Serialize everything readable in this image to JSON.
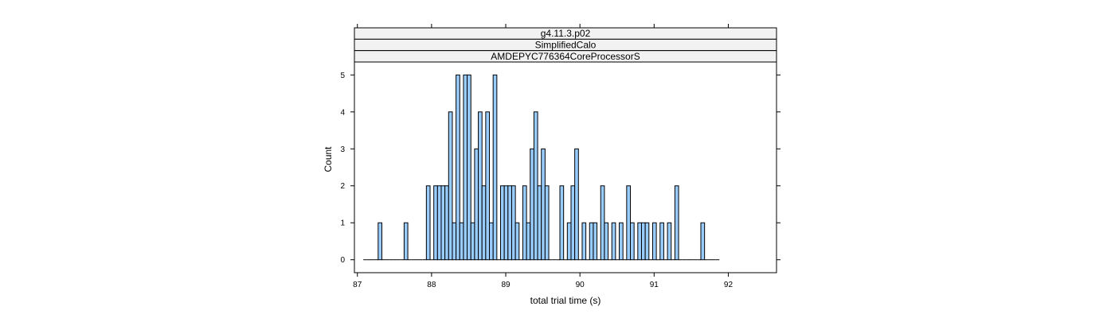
{
  "chart_data": {
    "type": "bar",
    "strips": [
      "g4.11.3.p02",
      "SimplifiedCalo",
      "AMDEPYC776364CoreProcessorS"
    ],
    "xlabel": "total trial time (s)",
    "ylabel": "Count",
    "xlim": [
      86.96,
      92.65
    ],
    "ylim": [
      -0.35,
      5.35
    ],
    "x_ticks": [
      87,
      88,
      89,
      90,
      91,
      92
    ],
    "y_ticks": [
      0,
      1,
      2,
      3,
      4,
      5
    ],
    "bin_start": 87.08,
    "bin_width": 0.05,
    "counts": [
      0,
      0,
      0,
      0,
      1,
      0,
      0,
      0,
      0,
      0,
      0,
      1,
      0,
      0,
      0,
      0,
      0,
      2,
      0,
      2,
      2,
      2,
      2,
      4,
      1,
      5,
      1,
      5,
      5,
      1,
      3,
      4,
      2,
      4,
      1,
      5,
      0,
      2,
      2,
      2,
      2,
      1,
      0,
      2,
      1,
      3,
      4,
      2,
      3,
      2,
      0,
      0,
      0,
      2,
      0,
      1,
      2,
      3,
      0,
      1,
      0,
      1,
      1,
      0,
      2,
      1,
      0,
      1,
      0,
      1,
      0,
      2,
      1,
      0,
      1,
      1,
      1,
      0,
      1,
      0,
      1,
      0,
      1,
      0,
      2,
      0,
      0,
      0,
      0,
      0,
      0,
      1,
      0,
      0,
      0,
      0
    ],
    "fill_color": "#99ccff",
    "stroke_color": "#000000",
    "strip_color": "#f2f2f2",
    "grid": false
  }
}
